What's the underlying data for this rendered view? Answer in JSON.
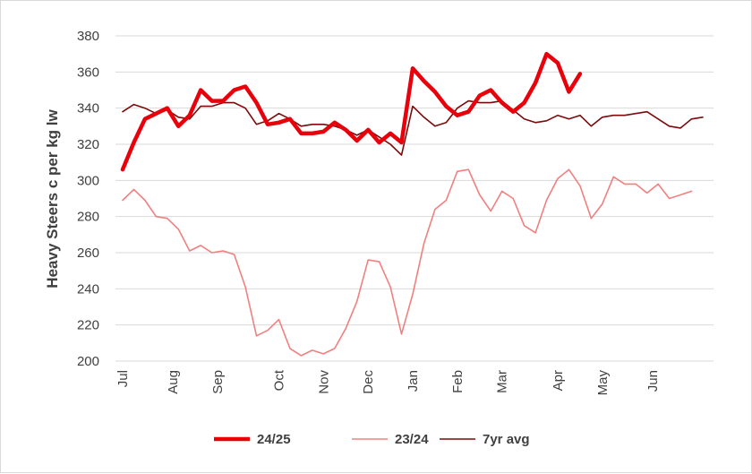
{
  "chart_data": {
    "type": "line",
    "ylabel": "Heavy Steers c per kg lw",
    "xlabel": "",
    "ylim": [
      200,
      380
    ],
    "yticks": [
      200,
      220,
      240,
      260,
      280,
      300,
      320,
      340,
      360,
      380
    ],
    "x_count": 53,
    "month_ticks": [
      {
        "label": "Jul",
        "index": 0
      },
      {
        "label": "Aug",
        "index": 4.5
      },
      {
        "label": "Sep",
        "index": 8.5
      },
      {
        "label": "Oct",
        "index": 14
      },
      {
        "label": "Nov",
        "index": 18
      },
      {
        "label": "Dec",
        "index": 22
      },
      {
        "label": "Jan",
        "index": 26
      },
      {
        "label": "Feb",
        "index": 30
      },
      {
        "label": "Mar",
        "index": 34
      },
      {
        "label": "Apr",
        "index": 39
      },
      {
        "label": "May",
        "index": 43
      },
      {
        "label": "Jun",
        "index": 47.5
      }
    ],
    "grid": true,
    "legend_position": "bottom",
    "series": [
      {
        "name": "24/25",
        "color": "#e8000b",
        "weight": "thick",
        "values": [
          306,
          321,
          334,
          337,
          340,
          330,
          336,
          350,
          344,
          344,
          350,
          352,
          343,
          331,
          332,
          334,
          326,
          326,
          327,
          332,
          328,
          322,
          328,
          321,
          326,
          321,
          362,
          355,
          349,
          341,
          336,
          338,
          347,
          350,
          343,
          338,
          343,
          354,
          370,
          365,
          349,
          359
        ]
      },
      {
        "name": "23/24",
        "color": "#f08080",
        "weight": "thin",
        "values": [
          289,
          295,
          289,
          280,
          279,
          273,
          261,
          264,
          260,
          261,
          259,
          241,
          214,
          217,
          223,
          207,
          203,
          206,
          204,
          207,
          218,
          233,
          256,
          255,
          241,
          215,
          237,
          265,
          284,
          289,
          305,
          306,
          292,
          283,
          294,
          290,
          275,
          271,
          289,
          301,
          306,
          297,
          279,
          287,
          302,
          298,
          298,
          293,
          298,
          290,
          292,
          294
        ]
      },
      {
        "name": "7yr avg",
        "color": "#7b0a0a",
        "weight": "thin",
        "values": [
          338,
          342,
          340,
          337,
          339,
          335,
          334,
          341,
          341,
          343,
          343,
          340,
          331,
          333,
          337,
          334,
          330,
          331,
          331,
          330,
          328,
          325,
          328,
          324,
          320,
          314,
          341,
          335,
          330,
          332,
          340,
          344,
          343,
          343,
          344,
          339,
          334,
          332,
          333,
          336,
          334,
          336,
          330,
          335,
          336,
          336,
          337,
          338,
          334,
          330,
          329,
          334,
          335
        ]
      }
    ]
  }
}
